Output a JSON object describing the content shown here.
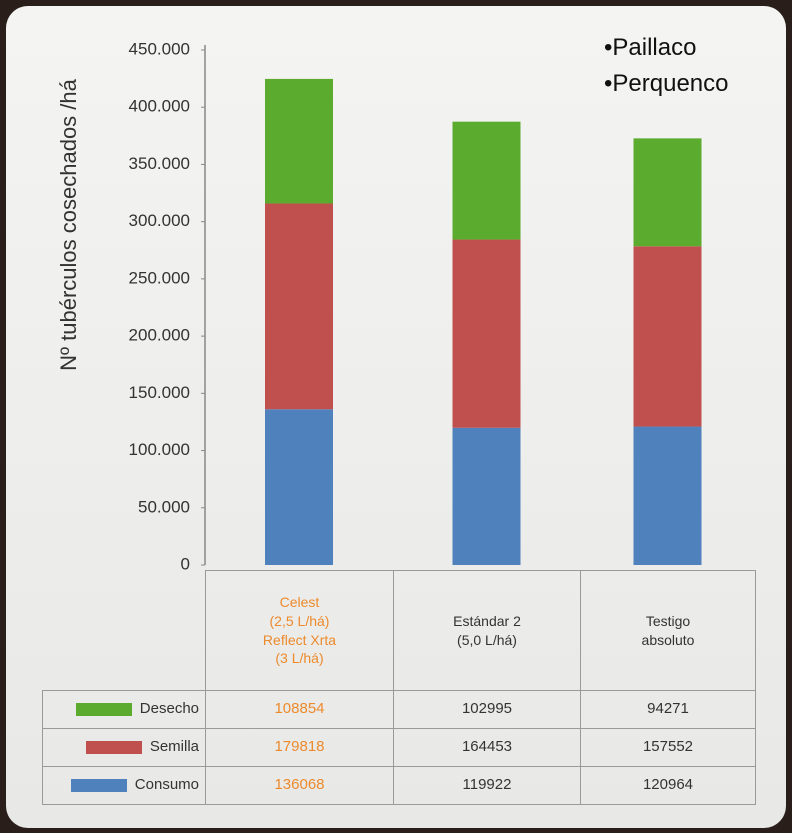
{
  "chart_data": {
    "type": "stacked_bar",
    "y_label": "Nº tubérculos cosechados /há",
    "annotations": [
      "•Paillaco",
      "•Perquenco"
    ],
    "categories": [
      "Celest\n(2,5 L/há)\nReflect Xrta\n(3 L/há)",
      "Estándar 2\n(5,0 L/há)",
      "Testigo\nabsoluto"
    ],
    "series": [
      {
        "name": "Desecho",
        "color": "#5bab2f",
        "values": [
          108854,
          102995,
          94271
        ]
      },
      {
        "name": "Semilla",
        "color": "#c0504d",
        "values": [
          179818,
          164453,
          157552
        ]
      },
      {
        "name": "Consumo",
        "color": "#4f81bd",
        "values": [
          136068,
          119922,
          120964
        ]
      }
    ],
    "ylim": [
      0,
      450000
    ],
    "yticks": [
      0,
      {
        "value": 50000,
        "label": "50.000"
      },
      {
        "value": 100000,
        "label": "100.000"
      },
      {
        "value": 150000,
        "label": "150.000"
      },
      {
        "value": 200000,
        "label": "200.000"
      },
      {
        "value": 250000,
        "label": "250.000"
      },
      {
        "value": 300000,
        "label": "300.000"
      },
      {
        "value": 350000,
        "label": "350.000"
      },
      {
        "value": 400000,
        "label": "400.000"
      },
      {
        "value": 450000,
        "label": "450.000"
      }
    ],
    "highlight_color": "#ec8a2c"
  }
}
